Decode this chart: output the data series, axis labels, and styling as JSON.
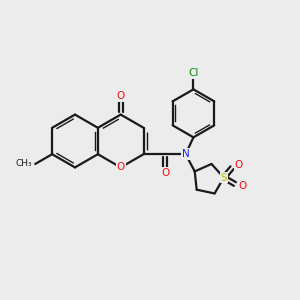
{
  "background_color": "#ececec",
  "bond_color": "#1a1a1a",
  "oxygen_color": "#ee1111",
  "nitrogen_color": "#2222ee",
  "sulfur_color": "#bbbb00",
  "chlorine_color": "#118811",
  "figsize": [
    3.0,
    3.0
  ],
  "dpi": 100,
  "xlim": [
    0,
    10
  ],
  "ylim": [
    0,
    10
  ]
}
